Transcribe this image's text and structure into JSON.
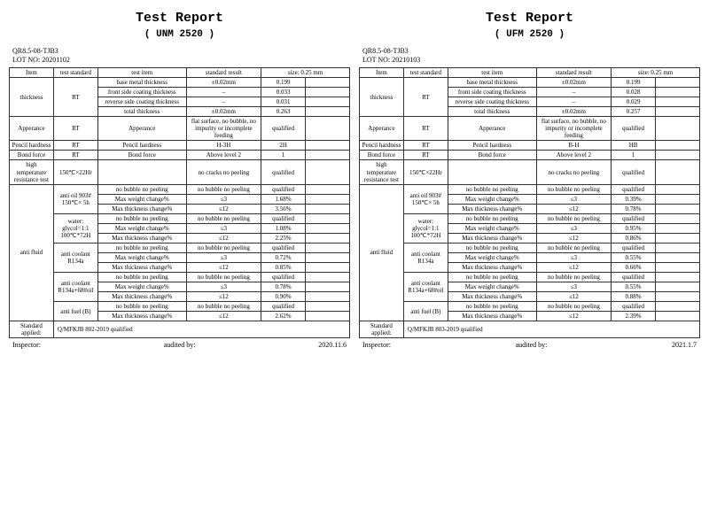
{
  "leftReport": {
    "title": "Test Report",
    "code": "(  UNM 2520  )",
    "docNo": "QR8.5-08-TJB3",
    "lotLabel": "LOT NO:",
    "lotNo": "20201102",
    "headers": {
      "item": "Item",
      "testStd": "test standard",
      "testItem": "test item",
      "stdResult": "standard result",
      "sizeHead": "size: 0.25 mm"
    },
    "thickness": {
      "label": "thickness",
      "std": "RT",
      "r1": {
        "n": "base metal thickness",
        "s": "±0.02mm",
        "v": "0.199"
      },
      "r2": {
        "n": "front side coating thickness",
        "s": "–",
        "v": "0.033"
      },
      "r3": {
        "n": "reverse side coating thickness",
        "s": "–",
        "v": "0.031"
      },
      "r4": {
        "n": "total thickness",
        "s": "±0.02mm",
        "v": "0.263"
      }
    },
    "appearance": {
      "item": "Apperance",
      "std": "RT",
      "test": "Apperance",
      "res": "flat surface, no bubble, no impurity or incomplete feeding",
      "v": "qualified"
    },
    "pencil": {
      "item": "Pencil hardness",
      "std": "RT",
      "test": "Pencil hardness",
      "res": "H-3H",
      "v": "2H"
    },
    "bond": {
      "item": "Bond force",
      "std": "RT",
      "test": "Bond force",
      "res": "Above level 2",
      "v": "1"
    },
    "hitemp": {
      "item": "high temperature resistance test",
      "std": "150℃×22Hr",
      "test": "",
      "res": "no cracks  no peeling",
      "v": "qualified"
    },
    "antiFluidLabel": "anti fluid",
    "groups": [
      {
        "sub": "anti oil 903# 150℃× 5h",
        "rows": [
          {
            "n": "no bubble  no peeling",
            "s": "no bubble  no peeling",
            "v": "qualified"
          },
          {
            "n": "Max weight change%",
            "s": "≤3",
            "v": "1.68%"
          },
          {
            "n": "Max thickness change%",
            "s": "≤12",
            "v": "3.56%"
          }
        ]
      },
      {
        "sub": "water: glycol=1:1 100℃*72H",
        "rows": [
          {
            "n": "no bubble  no peeling",
            "s": "no bubble  no peeling",
            "v": "qualified"
          },
          {
            "n": "Max weight change%",
            "s": "≤3",
            "v": "1.08%"
          },
          {
            "n": "Max thickness change%",
            "s": "≤12",
            "v": "2.25%"
          }
        ]
      },
      {
        "sub": "anti coolant R134a",
        "rows": [
          {
            "n": "no bubble  no peeling",
            "s": "no bubble  no peeling",
            "v": "qualified"
          },
          {
            "n": "Max weight change%",
            "s": "≤3",
            "v": "0.72%"
          },
          {
            "n": "Max thickness change%",
            "s": "≤12",
            "v": "0.85%"
          }
        ]
      },
      {
        "sub": "anti coolant R134a+68#oil",
        "rows": [
          {
            "n": "no bubble  no peeling",
            "s": "no bubble  no peeling",
            "v": "qualified"
          },
          {
            "n": "Max weight change%",
            "s": "≤3",
            "v": "0.78%"
          },
          {
            "n": "Max thickness change%",
            "s": "≤12",
            "v": "0.90%"
          }
        ]
      },
      {
        "sub": "anti fuel (B)",
        "rows": [
          {
            "n": "no bubble  no peeling",
            "s": "no bubble  no peeling",
            "v": "qualified"
          },
          {
            "n": "Max thickness change%",
            "s": "≤12",
            "v": "2.62%"
          }
        ]
      }
    ],
    "stdApplied": {
      "label": "Standard applied:",
      "value": "Q/MFKJB 802-2019  qualified"
    },
    "footer": {
      "inspector": "Inspector:",
      "audited": "audited by:",
      "date": "2020.11.6"
    }
  },
  "rightReport": {
    "title": "Test Report",
    "code": "(  UFM 2520  )",
    "docNo": "QR8.5-08-TJB3",
    "lotLabel": "LOT NO:",
    "lotNo": "20210103",
    "headers": {
      "item": "Item",
      "testStd": "test standard",
      "testItem": "test item",
      "stdResult": "standard result",
      "sizeHead": "size: 0.25 mm"
    },
    "thickness": {
      "label": "thickness",
      "std": "RT",
      "r1": {
        "n": "base metal thickness",
        "s": "±0.02mm",
        "v": "0.199"
      },
      "r2": {
        "n": "front side coating thickness",
        "s": "–",
        "v": "0.028"
      },
      "r3": {
        "n": "reverse side coating thickness",
        "s": "–",
        "v": "0.029"
      },
      "r4": {
        "n": "total thickness",
        "s": "±0.02mm",
        "v": "0.257"
      }
    },
    "appearance": {
      "item": "Apperance",
      "std": "RT",
      "test": "Apperance",
      "res": "flat surface, no bubble, no impurity or incomplete feeding",
      "v": "qualified"
    },
    "pencil": {
      "item": "Pencil hardness",
      "std": "RT",
      "test": "Pencil hardness",
      "res": "B-H",
      "v": "HB"
    },
    "bond": {
      "item": "Bond force",
      "std": "RT",
      "test": "Bond force",
      "res": "Above level 2",
      "v": "1"
    },
    "hitemp": {
      "item": "high temperature resistance test",
      "std": "150℃×22Hr",
      "test": "",
      "res": "no cracks  no peeling",
      "v": "qualified"
    },
    "antiFluidLabel": "anti fluid",
    "groups": [
      {
        "sub": "anti oil 903# 150℃× 5h",
        "rows": [
          {
            "n": "no bubble  no peeling",
            "s": "no bubble  no peeling",
            "v": "qualified"
          },
          {
            "n": "Max weight change%",
            "s": "≤3",
            "v": "0.39%"
          },
          {
            "n": "Max thickness change%",
            "s": "≤12",
            "v": "0.78%"
          }
        ]
      },
      {
        "sub": "water: glycol=1:1 100℃*72H",
        "rows": [
          {
            "n": "no bubble  no peeling",
            "s": "no bubble  no peeling",
            "v": "qualified"
          },
          {
            "n": "Max weight change%",
            "s": "≤3",
            "v": "0.95%"
          },
          {
            "n": "Max thickness change%",
            "s": "≤12",
            "v": "0.86%"
          }
        ]
      },
      {
        "sub": "anti coolant R134a",
        "rows": [
          {
            "n": "no bubble  no peeling",
            "s": "no bubble  no peeling",
            "v": "qualified"
          },
          {
            "n": "Max weight change%",
            "s": "≤3",
            "v": "0.55%"
          },
          {
            "n": "Max thickness change%",
            "s": "≤12",
            "v": "0.66%"
          }
        ]
      },
      {
        "sub": "anti coolant R134a+68#oil",
        "rows": [
          {
            "n": "no bubble  no peeling",
            "s": "no bubble  no peeling",
            "v": "qualified"
          },
          {
            "n": "Max weight change%",
            "s": "≤3",
            "v": "0.55%"
          },
          {
            "n": "Max thickness change%",
            "s": "≤12",
            "v": "0.88%"
          }
        ]
      },
      {
        "sub": "anti fuel (B)",
        "rows": [
          {
            "n": "no bubble  no peeling",
            "s": "no bubble  no peeling",
            "v": "qualified"
          },
          {
            "n": "Max thickness change%",
            "s": "≤12",
            "v": "2.39%"
          }
        ]
      }
    ],
    "stdApplied": {
      "label": "Standard applied:",
      "value": "Q/MFKJB 803-2019  qualified"
    },
    "footer": {
      "inspector": "Inspector:",
      "audited": "audited by:",
      "date": "2021.1.7"
    }
  }
}
